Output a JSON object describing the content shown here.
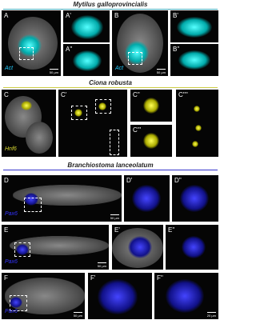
{
  "sections": [
    {
      "title": "Mytilus galloprovincialis",
      "panels": [
        {
          "label": "A",
          "marker": "Act",
          "scale": "50 µm"
        },
        {
          "label": "A'"
        },
        {
          "label": "A''"
        },
        {
          "label": "B",
          "marker": "Act",
          "scale": "50 µm"
        },
        {
          "label": "B'"
        },
        {
          "label": "B''"
        }
      ]
    },
    {
      "title": "Ciona robusta",
      "panels": [
        {
          "label": "C",
          "marker": "Hnf6"
        },
        {
          "label": "C'"
        },
        {
          "label": "C''"
        },
        {
          "label": "C'''"
        },
        {
          "label": "C''''"
        }
      ]
    },
    {
      "title": "Branchiostoma lanceolatum",
      "panels": [
        {
          "label": "D",
          "marker": "Pax6",
          "scale": "50 µm"
        },
        {
          "label": "D'"
        },
        {
          "label": "D''"
        },
        {
          "label": "E",
          "marker": "Pax6",
          "scale": "50 µm"
        },
        {
          "label": "E'"
        },
        {
          "label": "E''"
        },
        {
          "label": "F",
          "marker": "Pax6",
          "scale": "50 µm"
        },
        {
          "label": "F'"
        },
        {
          "label": "F''",
          "scale": "20 µm"
        }
      ]
    }
  ]
}
